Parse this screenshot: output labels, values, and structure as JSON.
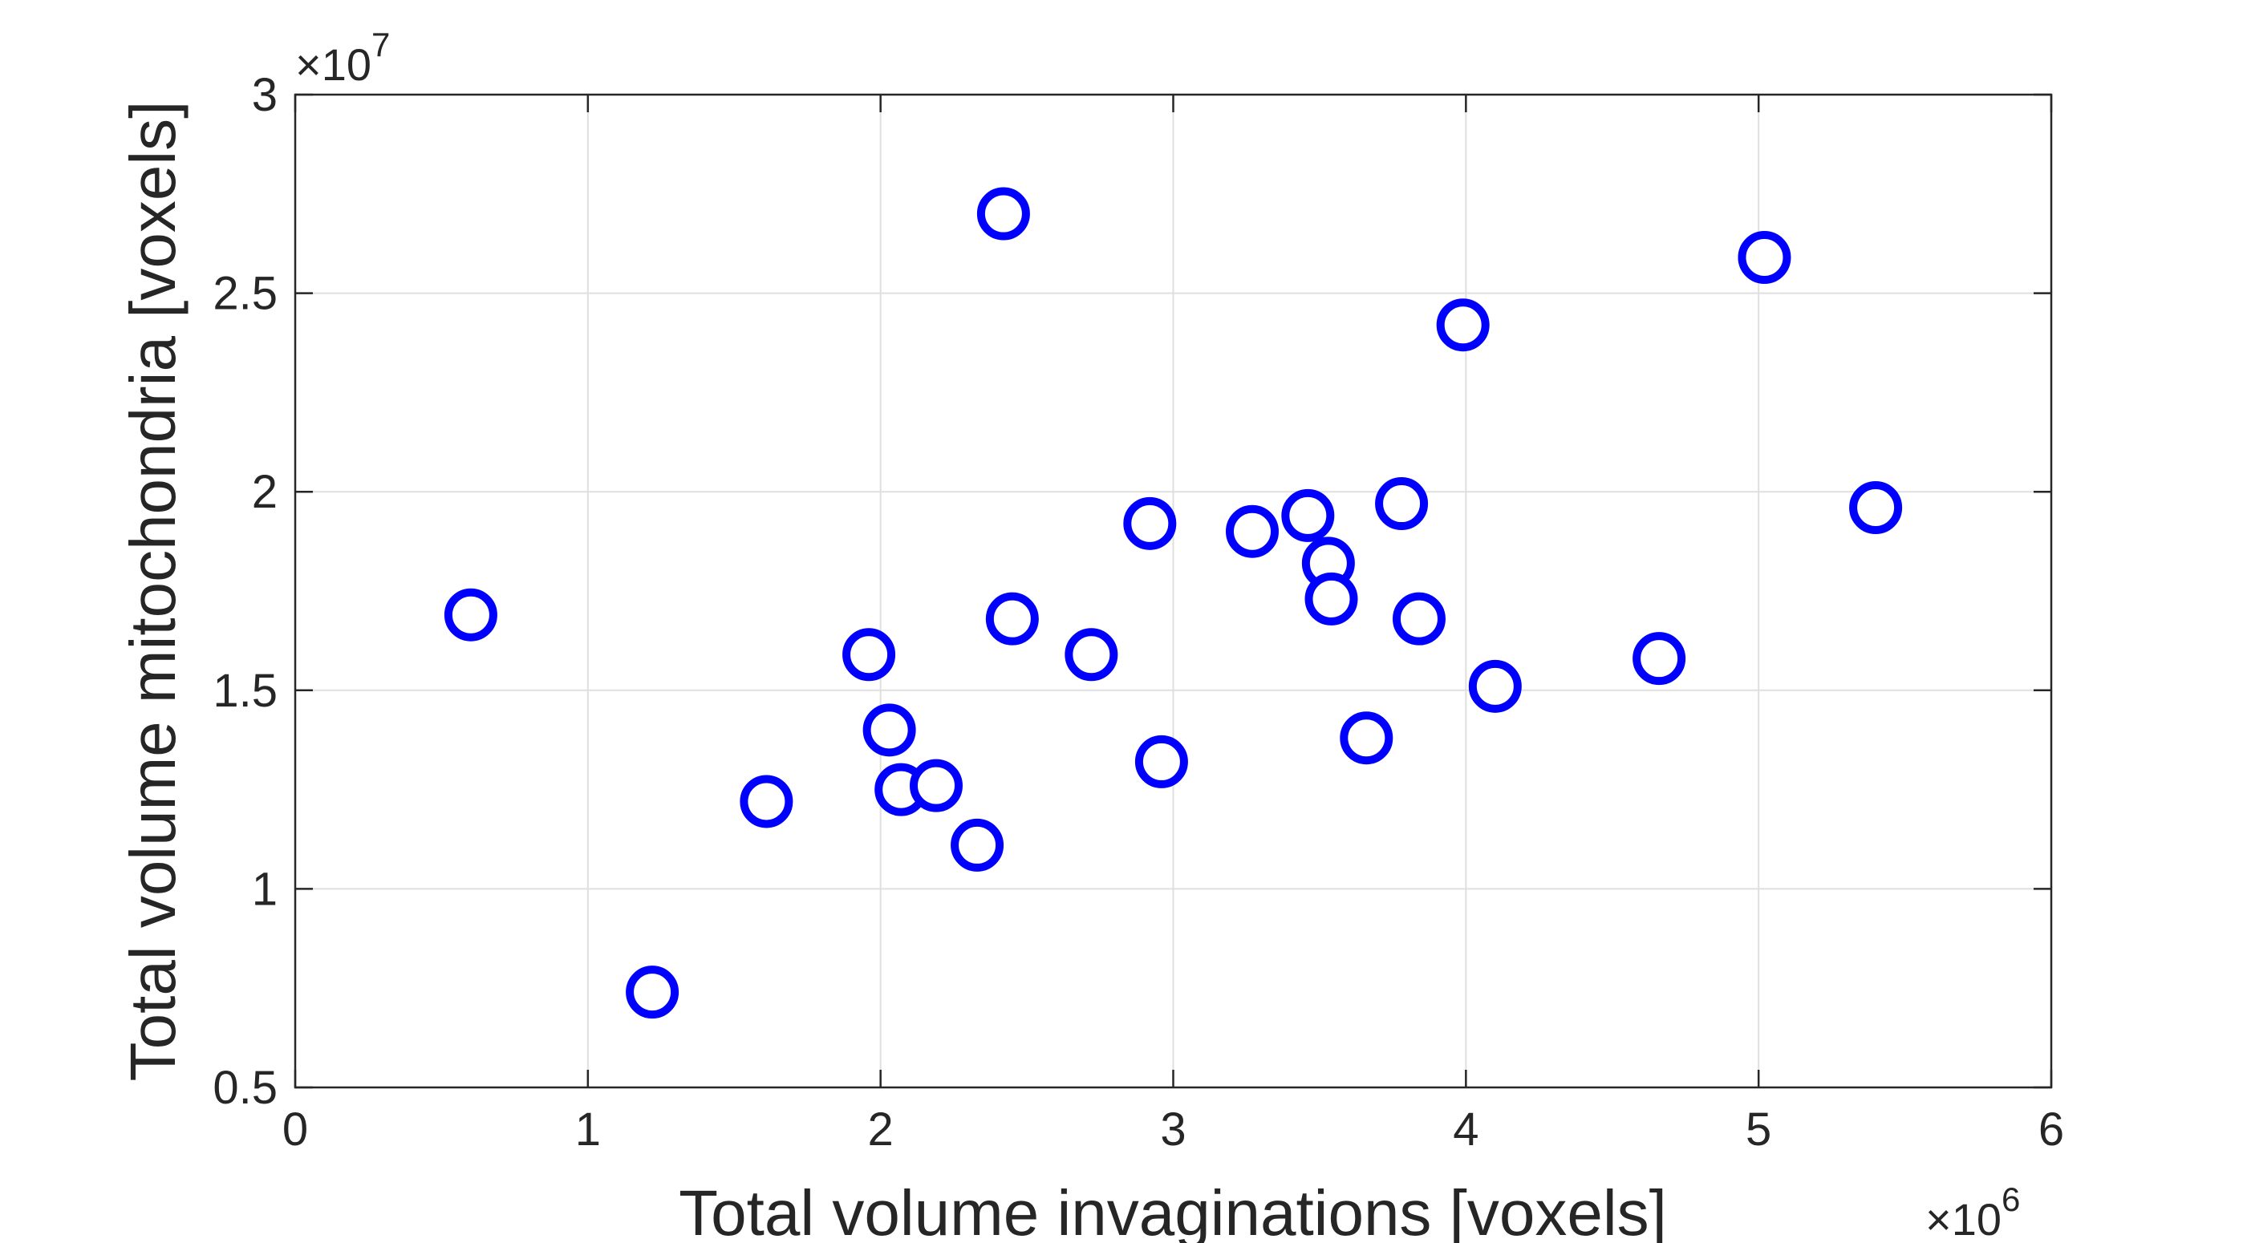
{
  "chart_data": {
    "type": "scatter",
    "xlabel": "Total volume invaginations [voxels]",
    "ylabel": "Total volume mitochondria [voxels]",
    "x_exponent_label": "×10",
    "x_exponent": "6",
    "y_exponent_label": "×10",
    "y_exponent": "7",
    "xlim": [
      0,
      6
    ],
    "ylim": [
      0.5,
      3
    ],
    "x_ticks": [
      "0",
      "1",
      "2",
      "3",
      "4",
      "5",
      "6"
    ],
    "y_ticks": [
      "0.5",
      "1",
      "1.5",
      "2",
      "2.5",
      "3"
    ],
    "x_tick_values": [
      0,
      1,
      2,
      3,
      4,
      5,
      6
    ],
    "y_tick_values": [
      0.5,
      1,
      1.5,
      2,
      2.5,
      3
    ],
    "grid": true,
    "marker": "circle-open",
    "marker_color": "#0000ff",
    "points": [
      {
        "x": 0.6,
        "y": 1.69
      },
      {
        "x": 1.22,
        "y": 0.74
      },
      {
        "x": 1.61,
        "y": 1.22
      },
      {
        "x": 1.96,
        "y": 1.59
      },
      {
        "x": 2.03,
        "y": 1.4
      },
      {
        "x": 2.07,
        "y": 1.25
      },
      {
        "x": 2.19,
        "y": 1.26
      },
      {
        "x": 2.33,
        "y": 1.11
      },
      {
        "x": 2.42,
        "y": 2.7
      },
      {
        "x": 2.45,
        "y": 1.68
      },
      {
        "x": 2.72,
        "y": 1.59
      },
      {
        "x": 2.92,
        "y": 1.92
      },
      {
        "x": 2.96,
        "y": 1.32
      },
      {
        "x": 3.27,
        "y": 1.9
      },
      {
        "x": 3.46,
        "y": 1.94
      },
      {
        "x": 3.53,
        "y": 1.82
      },
      {
        "x": 3.54,
        "y": 1.73
      },
      {
        "x": 3.66,
        "y": 1.38
      },
      {
        "x": 3.78,
        "y": 1.97
      },
      {
        "x": 3.84,
        "y": 1.68
      },
      {
        "x": 3.99,
        "y": 2.42
      },
      {
        "x": 4.1,
        "y": 1.51
      },
      {
        "x": 4.66,
        "y": 1.58
      },
      {
        "x": 5.02,
        "y": 2.59
      },
      {
        "x": 5.4,
        "y": 1.96
      }
    ]
  }
}
